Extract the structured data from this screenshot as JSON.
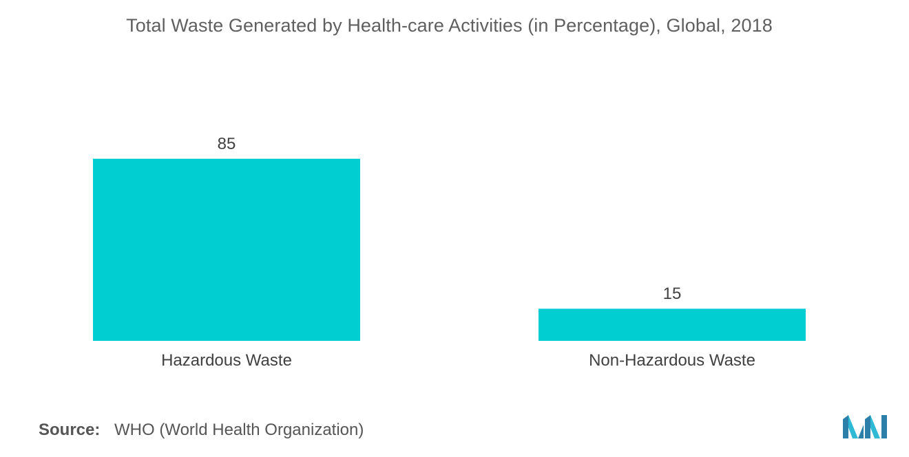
{
  "chart_data": {
    "type": "bar",
    "title": "Total Waste Generated by Health-care Activities (in Percentage), Global, 2018",
    "categories": [
      "Hazardous Waste",
      "Non-Hazardous Waste"
    ],
    "values": [
      85,
      15
    ],
    "data_labels": [
      "85",
      "15"
    ],
    "xlabel": "",
    "ylabel": "",
    "ylim": [
      0,
      85
    ],
    "grid": false,
    "legend": "none",
    "bar_color": "#00CED1"
  },
  "source": {
    "label": "Source:",
    "value": "WHO (World Health Organization)"
  },
  "logo": {
    "icon": "mordor-intelligence-logo-icon",
    "colors": [
      "#2B7FA8",
      "#2FB9D4"
    ]
  }
}
